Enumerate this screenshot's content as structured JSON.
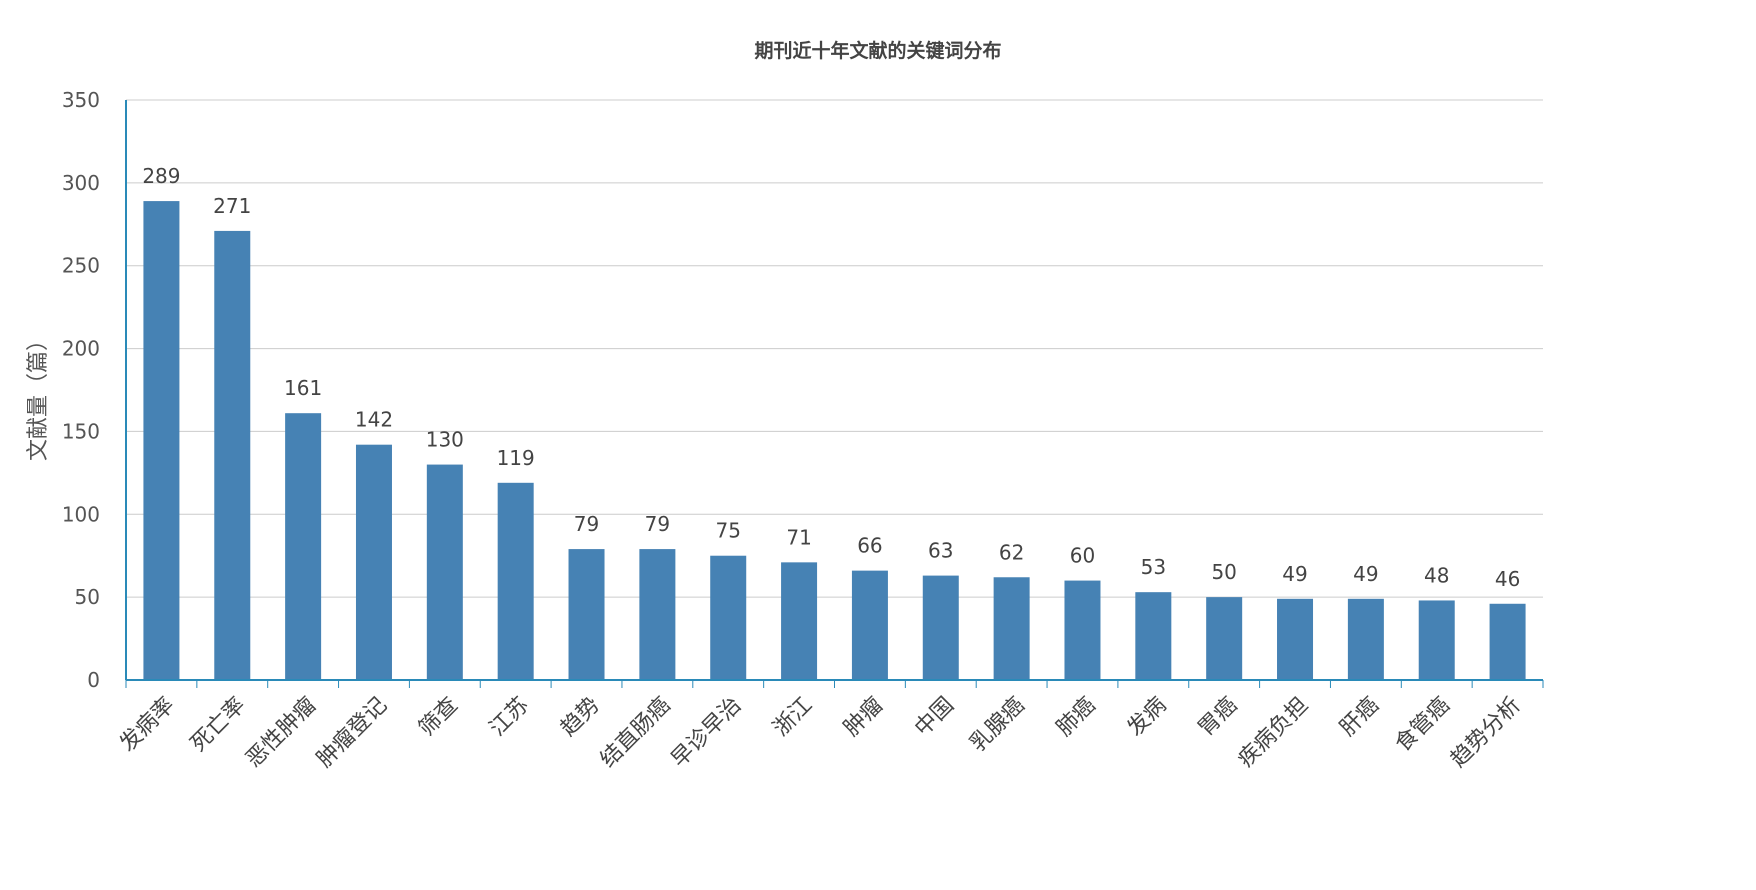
{
  "chart_data": {
    "type": "bar",
    "title": "期刊近十年文献的关键词分布",
    "xlabel": "",
    "ylabel": "文献量（篇）",
    "ylim": [
      0,
      350
    ],
    "yticks": [
      0,
      50,
      100,
      150,
      200,
      250,
      300,
      350
    ],
    "grid": true,
    "categories": [
      "发病率",
      "死亡率",
      "恶性肿瘤",
      "肿瘤登记",
      "筛查",
      "江苏",
      "趋势",
      "结直肠癌",
      "早诊早治",
      "浙江",
      "肿瘤",
      "中国",
      "乳腺癌",
      "肺癌",
      "发病",
      "胃癌",
      "疾病负担",
      "肝癌",
      "食管癌",
      "趋势分析"
    ],
    "values": [
      289,
      271,
      161,
      142,
      130,
      119,
      79,
      79,
      75,
      71,
      66,
      63,
      62,
      60,
      53,
      50,
      49,
      49,
      48,
      46
    ],
    "bar_color": "#4682b4",
    "axis_color": "#2a8ab8",
    "grid_color": "#cccccc"
  }
}
